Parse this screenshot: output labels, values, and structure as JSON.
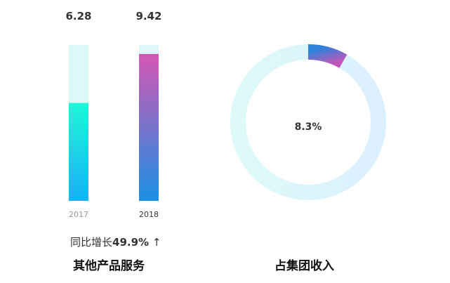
{
  "chart_data": [
    {
      "type": "bar",
      "categories": [
        "2017",
        "2018"
      ],
      "values": [
        6.28,
        9.42
      ],
      "value_labels": [
        "6.28",
        "9.42"
      ],
      "ylim": [
        0,
        10.0
      ],
      "growth_label": "同比增长",
      "growth_value": "49.9%",
      "growth_arrow": "↑",
      "title": "其他产品服务"
    },
    {
      "type": "pie",
      "variant": "donut",
      "values": [
        8.3,
        91.7
      ],
      "center_label": "8.3%",
      "title": "占集团收入"
    }
  ],
  "colors": {
    "track_light": "#dcf8f8",
    "bar2017_top": "#1ff7d6",
    "bar2017_bottom": "#14b1f6",
    "bar2018_top": "#d457b4",
    "bar2018_bottom": "#1b8fe3",
    "ring_left": "#ddfaf8",
    "ring_right": "#dcefff",
    "seg_start": "#2f82dc",
    "seg_end": "#c455b8"
  }
}
